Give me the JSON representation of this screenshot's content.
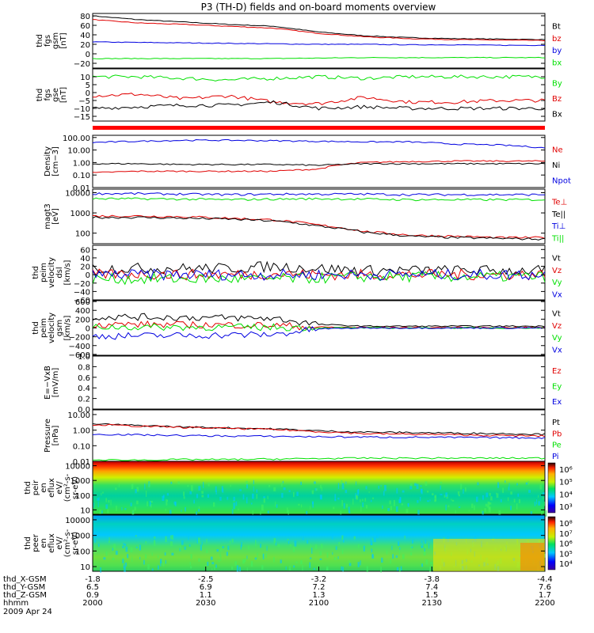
{
  "title": "P3 (TH-D) fields and on-board moments overview",
  "date_label": "2009 Apr 24",
  "colors": {
    "black": "#000000",
    "red": "#e00000",
    "green": "#00e000",
    "blue": "#0000e0",
    "orange": "#ff0000"
  },
  "x_axis": {
    "row_labels": [
      "thd_X-GSM",
      "thd_Y-GSM",
      "thd_Z-GSM",
      "hhmm"
    ],
    "columns": [
      [
        "-1.8",
        "6.5",
        "0.9",
        "2000"
      ],
      [
        "-2.5",
        "6.9",
        "1.1",
        "2030"
      ],
      [
        "-3.2",
        "7.2",
        "1.3",
        "2100"
      ],
      [
        "-3.8",
        "7.4",
        "1.5",
        "2130"
      ],
      [
        "-4.4",
        "7.6",
        "1.7",
        "2200"
      ]
    ]
  },
  "chart_data": [
    {
      "type": "line",
      "ylabel": [
        "thd",
        "fgs",
        "gsm",
        "[nT]"
      ],
      "ylim": [
        -30,
        85
      ],
      "yticks": [
        80,
        60,
        40,
        20,
        0,
        -20
      ],
      "ytick_labels": [
        "80",
        "60",
        "40",
        "20",
        "0",
        "−20"
      ],
      "x": [
        0,
        0.1,
        0.2,
        0.3,
        0.4,
        0.5,
        0.6,
        0.7,
        0.8,
        0.9,
        1.0
      ],
      "series": [
        {
          "name": "Bt",
          "color": "#000000",
          "values": [
            80,
            72,
            67,
            62,
            58,
            46,
            38,
            34,
            32,
            31,
            30
          ]
        },
        {
          "name": "bz",
          "color": "#e00000",
          "values": [
            72,
            65,
            62,
            58,
            54,
            43,
            36,
            32,
            30,
            29,
            28
          ]
        },
        {
          "name": "by",
          "color": "#0000e0",
          "values": [
            25,
            24,
            23,
            22,
            21,
            20,
            20,
            19,
            19,
            18,
            18
          ]
        },
        {
          "name": "bx",
          "color": "#00e000",
          "values": [
            -10,
            -10,
            -10,
            -10,
            -10,
            -9,
            -8,
            -8,
            -8,
            -8,
            -8
          ]
        }
      ]
    },
    {
      "type": "line",
      "ylabel": [
        "thd",
        "fgs",
        "gse",
        "[nT]"
      ],
      "ylim": [
        -18,
        15
      ],
      "yticks": [
        10,
        5,
        0,
        -5,
        -10,
        -15
      ],
      "ytick_labels": [
        "10",
        "5",
        "0",
        "−5",
        "−10",
        "−15"
      ],
      "x": [
        0,
        0.1,
        0.2,
        0.3,
        0.4,
        0.5,
        0.6,
        0.7,
        0.8,
        0.9,
        1.0
      ],
      "series": [
        {
          "name": "By",
          "color": "#00e000",
          "values": [
            10,
            10,
            9,
            8,
            9,
            10,
            9,
            10,
            10,
            10,
            10
          ]
        },
        {
          "name": "Bz",
          "color": "#e00000",
          "values": [
            -2,
            -1,
            -4,
            -2,
            -6,
            -7,
            -3,
            -6,
            -6,
            -5,
            -5
          ]
        },
        {
          "name": "Bx",
          "color": "#000000",
          "values": [
            -10,
            -9,
            -8,
            -8,
            -6,
            -10,
            -9,
            -10,
            -10,
            -10,
            -10
          ]
        }
      ]
    },
    {
      "type": "line",
      "ylabel": [
        "Density",
        "[cm−3]"
      ],
      "ylog": true,
      "ylim": [
        0.01,
        150
      ],
      "yticks": [
        100,
        10,
        1,
        0.1,
        0.01
      ],
      "ytick_labels": [
        "100.00",
        "10.00",
        "1.00",
        "0.10",
        "0.01"
      ],
      "x": [
        0,
        0.1,
        0.2,
        0.3,
        0.4,
        0.5,
        0.6,
        0.7,
        0.8,
        0.9,
        1.0
      ],
      "series": [
        {
          "name": "Ne",
          "color": "#e00000",
          "values": [
            0.15,
            0.2,
            0.2,
            0.2,
            0.2,
            0.3,
            1.0,
            1.2,
            1.3,
            1.3,
            1.3
          ]
        },
        {
          "name": "Ni",
          "color": "#000000",
          "values": [
            0.8,
            0.8,
            0.7,
            0.7,
            0.7,
            0.6,
            0.8,
            0.8,
            0.8,
            0.8,
            0.8
          ]
        },
        {
          "name": "Npot",
          "color": "#0000e0",
          "values": [
            40,
            50,
            60,
            60,
            55,
            50,
            45,
            45,
            30,
            25,
            15
          ]
        }
      ]
    },
    {
      "type": "line",
      "ylabel": [
        "magt3",
        "[eV]"
      ],
      "ylog": true,
      "ylim": [
        30,
        15000
      ],
      "yticks": [
        10000,
        1000,
        100
      ],
      "ytick_labels": [
        "10000",
        "1000",
        "100"
      ],
      "x": [
        0,
        0.1,
        0.2,
        0.3,
        0.4,
        0.5,
        0.6,
        0.7,
        0.8,
        0.9,
        1.0
      ],
      "series": [
        {
          "name": "Te⊥",
          "color": "#e00000",
          "values": [
            700,
            700,
            650,
            550,
            450,
            250,
            120,
            80,
            70,
            60,
            60
          ]
        },
        {
          "name": "Te||",
          "color": "#000000",
          "values": [
            600,
            600,
            550,
            500,
            400,
            220,
            110,
            70,
            60,
            55,
            50
          ]
        },
        {
          "name": "Ti⊥",
          "color": "#0000e0",
          "values": [
            9000,
            9000,
            8500,
            8000,
            8500,
            8500,
            8500,
            8000,
            8000,
            8000,
            8000
          ]
        },
        {
          "name": "Ti||",
          "color": "#00e000",
          "values": [
            5000,
            5000,
            4800,
            4500,
            4800,
            5000,
            4800,
            4500,
            4500,
            4500,
            4500
          ]
        }
      ]
    },
    {
      "type": "line",
      "ylabel": [
        "thd",
        "peim",
        "velocity",
        "dsl",
        "[km/s]"
      ],
      "ylim": [
        -60,
        70
      ],
      "yticks": [
        60,
        40,
        20,
        0,
        -20,
        -40,
        -60
      ],
      "ytick_labels": [
        "60",
        "40",
        "20",
        "0",
        "−20",
        "−40",
        "−60"
      ],
      "x": [
        0,
        0.1,
        0.2,
        0.3,
        0.4,
        0.5,
        0.6,
        0.7,
        0.8,
        0.9,
        1.0
      ],
      "series": [
        {
          "name": "Vt",
          "color": "#000000",
          "values": [
            15,
            15,
            15,
            15,
            20,
            15,
            10,
            10,
            10,
            10,
            10
          ]
        },
        {
          "name": "Vz",
          "color": "#e00000",
          "values": [
            0,
            2,
            0,
            0,
            2,
            0,
            0,
            0,
            0,
            0,
            0
          ]
        },
        {
          "name": "Vy",
          "color": "#00e000",
          "values": [
            -10,
            -10,
            -10,
            -10,
            -10,
            -8,
            -5,
            -5,
            -5,
            -5,
            -5
          ]
        },
        {
          "name": "Vx",
          "color": "#0000e0",
          "values": [
            0,
            0,
            0,
            0,
            0,
            0,
            0,
            0,
            0,
            0,
            0
          ]
        }
      ]
    },
    {
      "type": "line",
      "ylabel": [
        "thd",
        "peim",
        "velocity",
        "gsm",
        "[km/s]"
      ],
      "ylim": [
        -620,
        620
      ],
      "yticks": [
        600,
        400,
        200,
        0,
        -200,
        -400,
        -600
      ],
      "ytick_labels": [
        "600",
        "400",
        "200",
        "0",
        "−200",
        "−400",
        "−600"
      ],
      "x": [
        0,
        0.1,
        0.2,
        0.3,
        0.4,
        0.5,
        0.6,
        0.7,
        0.8,
        0.9,
        1.0
      ],
      "series": [
        {
          "name": "Vt",
          "color": "#000000",
          "values": [
            250,
            250,
            240,
            230,
            220,
            80,
            40,
            40,
            40,
            40,
            40
          ]
        },
        {
          "name": "Vz",
          "color": "#e00000",
          "values": [
            80,
            80,
            70,
            70,
            60,
            20,
            10,
            10,
            10,
            10,
            10
          ]
        },
        {
          "name": "Vy",
          "color": "#00e000",
          "values": [
            20,
            20,
            20,
            15,
            15,
            5,
            0,
            0,
            0,
            0,
            0
          ]
        },
        {
          "name": "Vx",
          "color": "#0000e0",
          "values": [
            -180,
            -180,
            -170,
            -160,
            -150,
            -20,
            0,
            0,
            0,
            0,
            0
          ]
        }
      ]
    },
    {
      "type": "line",
      "ylabel": [
        "E=−VxB",
        "[mV/m]"
      ],
      "ylim": [
        0,
        1
      ],
      "yticks": [
        1.0,
        0.8,
        0.6,
        0.4,
        0.2,
        0.0
      ],
      "ytick_labels": [
        "1.0",
        "0.8",
        "0.6",
        "0.4",
        "0.2",
        "0.0"
      ],
      "x": [],
      "series": [
        {
          "name": "Ez",
          "color": "#e00000",
          "values": []
        },
        {
          "name": "Ey",
          "color": "#00e000",
          "values": []
        },
        {
          "name": "Ex",
          "color": "#0000e0",
          "values": []
        }
      ]
    },
    {
      "type": "line",
      "ylabel": [
        "Pressure",
        "[nPa]"
      ],
      "ylog": true,
      "ylim": [
        0.01,
        20
      ],
      "yticks": [
        10,
        1,
        0.1,
        0.01
      ],
      "ytick_labels": [
        "10.00",
        "1.00",
        "0.10",
        "0.01"
      ],
      "x": [
        0,
        0.1,
        0.2,
        0.3,
        0.4,
        0.5,
        0.6,
        0.7,
        0.8,
        0.9,
        1.0
      ],
      "series": [
        {
          "name": "Pt",
          "color": "#000000",
          "values": [
            2.5,
            2.0,
            1.6,
            1.4,
            1.2,
            0.9,
            0.75,
            0.7,
            0.65,
            0.6,
            0.55
          ]
        },
        {
          "name": "Pb",
          "color": "#e00000",
          "values": [
            2.3,
            1.8,
            1.5,
            1.3,
            1.1,
            0.8,
            0.6,
            0.55,
            0.5,
            0.45,
            0.42
          ]
        },
        {
          "name": "Pe",
          "color": "#00e000",
          "values": [
            0.012,
            0.012,
            0.013,
            0.013,
            0.014,
            0.015,
            0.016,
            0.016,
            0.016,
            0.016,
            0.016
          ]
        },
        {
          "name": "Pi",
          "color": "#0000e0",
          "values": [
            0.55,
            0.5,
            0.45,
            0.42,
            0.4,
            0.38,
            0.36,
            0.35,
            0.34,
            0.33,
            0.32
          ]
        }
      ]
    },
    {
      "type": "heatmap",
      "ylabel": [
        "thd",
        "peir",
        "en",
        "eflux",
        "eV/",
        "(cm²-s-",
        "sr-eV)"
      ],
      "ylog": true,
      "ylim": [
        5,
        20000
      ],
      "yticks": [
        10000,
        1000,
        100,
        10
      ],
      "ytick_labels": [
        "10000",
        "1000",
        "100",
        "10"
      ],
      "colorbar": {
        "ticks": [
          "10⁶",
          "10⁵",
          "10⁴",
          "10³"
        ],
        "tick_values": [
          6,
          5,
          4,
          3
        ]
      }
    },
    {
      "type": "heatmap",
      "ylabel": [
        "thd",
        "peer",
        "en",
        "eflux",
        "eV/",
        "(cm²-s-",
        "sr-eV)"
      ],
      "ylog": true,
      "ylim": [
        5,
        20000
      ],
      "yticks": [
        10000,
        1000,
        100,
        10
      ],
      "ytick_labels": [
        "10000",
        "1000",
        "100",
        "10"
      ],
      "colorbar": {
        "ticks": [
          "10⁸",
          "10⁷",
          "10⁶",
          "10⁵",
          "10⁴"
        ],
        "tick_values": [
          8,
          7,
          6,
          5,
          4
        ]
      }
    }
  ]
}
